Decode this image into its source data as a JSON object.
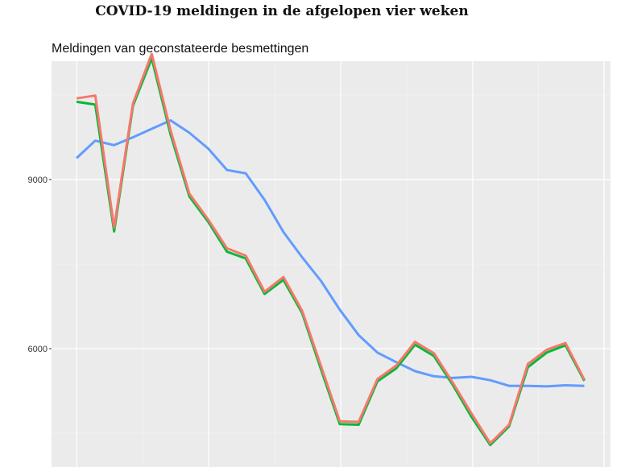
{
  "title": "COVID-19 meldingen in de afgelopen vier weken",
  "subtitle": "Meldingen van geconstateerde besmettingen",
  "chart_data": {
    "type": "line",
    "x": [
      1,
      2,
      3,
      4,
      5,
      6,
      7,
      8,
      9,
      10,
      11,
      12,
      13,
      14,
      15,
      16,
      17,
      18,
      19,
      20,
      21,
      22,
      23,
      24,
      25,
      26,
      27,
      28
    ],
    "ylim": [
      3900,
      11100
    ],
    "yticks": [
      6000,
      9000
    ],
    "ytick_labels": [
      "6000",
      "9000"
    ],
    "grid": true,
    "legend": "none",
    "series": [
      {
        "color": "#619cff",
        "values": [
          9380,
          9690,
          9610,
          9750,
          9900,
          10050,
          9830,
          9550,
          9170,
          9110,
          8640,
          8070,
          7620,
          7200,
          6690,
          6240,
          5930,
          5760,
          5600,
          5510,
          5480,
          5500,
          5440,
          5340,
          5340,
          5330,
          5350,
          5340
        ]
      },
      {
        "color": "#00ba38",
        "values": [
          10380,
          10330,
          8080,
          10310,
          11150,
          9800,
          8700,
          8250,
          7720,
          7600,
          6970,
          7220,
          6630,
          5630,
          4660,
          4650,
          5420,
          5650,
          6070,
          5870,
          5360,
          4790,
          4290,
          4620,
          5670,
          5930,
          6060,
          5430
        ]
      },
      {
        "color": "#f8766d",
        "values": [
          10440,
          10490,
          8150,
          10350,
          11230,
          9870,
          8750,
          8290,
          7780,
          7650,
          7010,
          7270,
          6670,
          5690,
          4710,
          4700,
          5460,
          5700,
          6120,
          5920,
          5400,
          4850,
          4320,
          4650,
          5730,
          5980,
          6100,
          5450
        ]
      }
    ]
  }
}
